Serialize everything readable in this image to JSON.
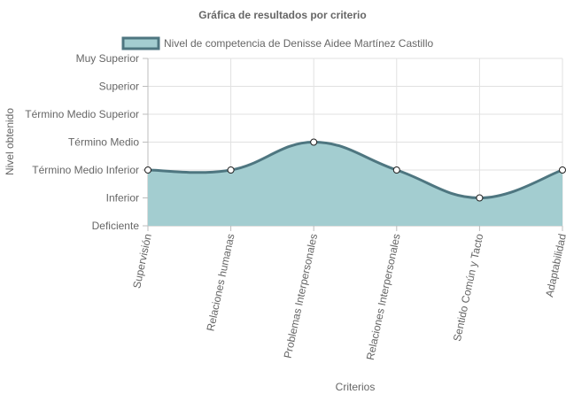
{
  "chart_data": {
    "type": "area",
    "title": "Gráfica de resultados por criterio",
    "xlabel": "Criterios",
    "ylabel": "Nivel obtenido",
    "categories": [
      "Supervisión",
      "Relaciones humanas",
      "Problemas Interpersonales",
      "Relaciones Interpersonales",
      "Sentido Común y Tacto",
      "Adaptabilidad"
    ],
    "y_levels": [
      "Deficiente",
      "Inferior",
      "Término Medio Inferior",
      "Término Medio",
      "Término Medio Superior",
      "Superior",
      "Muy Superior"
    ],
    "ylim": [
      0,
      6
    ],
    "grid": true,
    "legend": "top-left",
    "series": [
      {
        "name": "Nivel de competencia de Denisse Aidee Martínez Castillo",
        "values": [
          2,
          2,
          3,
          2,
          1,
          2
        ],
        "line_color": "#4e7680",
        "fill_color": "#a3cdd0"
      }
    ]
  }
}
